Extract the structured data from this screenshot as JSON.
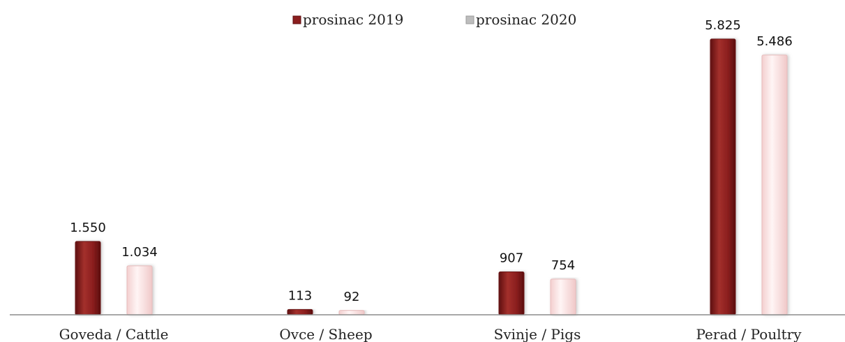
{
  "chart_data": {
    "type": "bar",
    "categories": [
      "Goveda / Cattle",
      "Ovce / Sheep",
      "Svinje / Pigs",
      "Perad / Poultry"
    ],
    "series": [
      {
        "name": "prosinac 2019",
        "values": [
          1550,
          113,
          907,
          5825
        ],
        "value_labels": [
          "1.550",
          "113",
          "907",
          "5.825"
        ],
        "color": "#8b1e1e"
      },
      {
        "name": "prosinac 2020",
        "values": [
          1034,
          92,
          754,
          5486
        ],
        "value_labels": [
          "1.034",
          "92",
          "754",
          "5.486"
        ],
        "color": "#fce4e4"
      }
    ],
    "ylim": [
      0,
      6000
    ],
    "grid": false,
    "legend_position": "top-center"
  }
}
